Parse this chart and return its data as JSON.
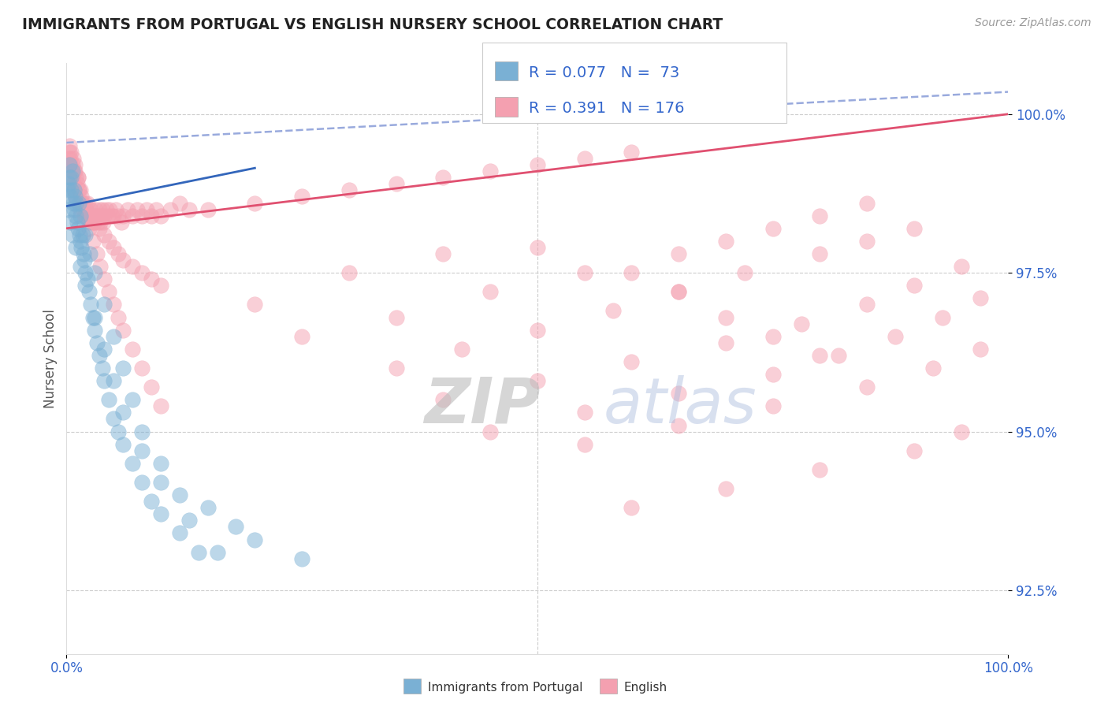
{
  "title": "IMMIGRANTS FROM PORTUGAL VS ENGLISH NURSERY SCHOOL CORRELATION CHART",
  "source_text": "Source: ZipAtlas.com",
  "ylabel": "Nursery School",
  "xlim": [
    0.0,
    100.0
  ],
  "ylim": [
    91.5,
    100.8
  ],
  "yticks": [
    92.5,
    95.0,
    97.5,
    100.0
  ],
  "xticks": [
    0.0,
    100.0
  ],
  "xticklabels": [
    "0.0%",
    "100.0%"
  ],
  "yticklabels": [
    "92.5%",
    "95.0%",
    "97.5%",
    "100.0%"
  ],
  "blue_color": "#7ab0d4",
  "pink_color": "#f4a0b0",
  "blue_line_color": "#3366bb",
  "pink_line_color": "#e05070",
  "dashed_line_color": "#99aadd",
  "legend_R1": "R = 0.077",
  "legend_N1": "N =  73",
  "legend_R2": "R = 0.391",
  "legend_N2": "N = 176",
  "watermark_zip": "ZIP",
  "watermark_atlas": "atlas",
  "legend_label1": "Immigrants from Portugal",
  "legend_label2": "English",
  "background_color": "#ffffff",
  "grid_color": "#cccccc",
  "title_color": "#222222",
  "axis_label_color": "#555555",
  "tick_color": "#3366cc",
  "blue_scatter_x": [
    0.1,
    0.2,
    0.3,
    0.4,
    0.5,
    0.6,
    0.7,
    0.8,
    0.9,
    1.0,
    1.1,
    1.2,
    1.3,
    1.4,
    1.5,
    1.6,
    1.7,
    1.8,
    1.9,
    2.0,
    2.2,
    2.4,
    2.6,
    2.8,
    3.0,
    3.2,
    3.5,
    3.8,
    4.0,
    4.5,
    5.0,
    5.5,
    6.0,
    7.0,
    8.0,
    9.0,
    10.0,
    12.0,
    14.0,
    0.3,
    0.5,
    0.8,
    1.0,
    1.5,
    2.0,
    2.5,
    3.0,
    4.0,
    5.0,
    6.0,
    7.0,
    8.0,
    10.0,
    12.0,
    15.0,
    18.0,
    20.0,
    25.0,
    0.2,
    0.4,
    0.6,
    1.0,
    1.5,
    2.0,
    3.0,
    4.0,
    5.0,
    6.0,
    8.0,
    10.0,
    13.0,
    16.0
  ],
  "blue_scatter_y": [
    98.8,
    98.9,
    99.0,
    98.7,
    98.8,
    99.1,
    98.6,
    98.5,
    98.7,
    98.4,
    98.3,
    98.2,
    98.6,
    98.1,
    98.0,
    97.9,
    98.1,
    97.8,
    97.7,
    97.5,
    97.4,
    97.2,
    97.0,
    96.8,
    96.6,
    96.4,
    96.2,
    96.0,
    95.8,
    95.5,
    95.2,
    95.0,
    94.8,
    94.5,
    94.2,
    93.9,
    93.7,
    93.4,
    93.1,
    99.2,
    99.0,
    98.8,
    98.6,
    98.4,
    98.1,
    97.8,
    97.5,
    97.0,
    96.5,
    96.0,
    95.5,
    95.0,
    94.5,
    94.0,
    93.8,
    93.5,
    93.3,
    93.0,
    98.5,
    98.3,
    98.1,
    97.9,
    97.6,
    97.3,
    96.8,
    96.3,
    95.8,
    95.3,
    94.7,
    94.2,
    93.6,
    93.1
  ],
  "pink_scatter_x": [
    0.1,
    0.2,
    0.3,
    0.4,
    0.5,
    0.6,
    0.7,
    0.8,
    0.9,
    1.0,
    1.1,
    1.2,
    1.3,
    1.4,
    1.5,
    1.6,
    1.7,
    1.8,
    1.9,
    2.0,
    2.1,
    2.2,
    2.3,
    2.4,
    2.5,
    2.6,
    2.7,
    2.8,
    2.9,
    3.0,
    3.1,
    3.2,
    3.3,
    3.4,
    3.5,
    3.6,
    3.7,
    3.8,
    3.9,
    4.0,
    4.2,
    4.4,
    4.6,
    4.8,
    5.0,
    5.2,
    5.5,
    5.8,
    6.0,
    6.5,
    7.0,
    7.5,
    8.0,
    8.5,
    9.0,
    9.5,
    10.0,
    11.0,
    12.0,
    13.0,
    0.3,
    0.5,
    0.7,
    0.9,
    1.2,
    1.5,
    2.0,
    2.5,
    3.0,
    3.5,
    4.0,
    4.5,
    5.0,
    5.5,
    6.0,
    7.0,
    8.0,
    9.0,
    10.0,
    0.4,
    0.6,
    0.8,
    1.0,
    1.3,
    1.6,
    2.0,
    2.4,
    2.8,
    3.2,
    3.6,
    4.0,
    4.5,
    5.0,
    5.5,
    6.0,
    7.0,
    8.0,
    9.0,
    10.0,
    15.0,
    20.0,
    25.0,
    30.0,
    35.0,
    40.0,
    45.0,
    50.0,
    55.0,
    60.0,
    20.0,
    30.0,
    40.0,
    50.0,
    60.0,
    65.0,
    70.0,
    75.0,
    80.0,
    25.0,
    35.0,
    45.0,
    55.0,
    65.0,
    70.0,
    75.0,
    80.0,
    85.0,
    35.0,
    42.0,
    50.0,
    58.0,
    65.0,
    72.0,
    80.0,
    85.0,
    90.0,
    40.0,
    50.0,
    60.0,
    70.0,
    78.0,
    85.0,
    90.0,
    95.0,
    45.0,
    55.0,
    65.0,
    75.0,
    82.0,
    88.0,
    93.0,
    97.0,
    55.0,
    65.0,
    75.0,
    85.0,
    92.0,
    97.0,
    60.0,
    70.0,
    80.0,
    90.0,
    95.0
  ],
  "pink_scatter_y": [
    99.2,
    99.3,
    99.4,
    99.2,
    99.1,
    99.0,
    98.9,
    98.8,
    99.1,
    98.7,
    98.9,
    99.0,
    98.8,
    98.6,
    98.5,
    98.7,
    98.6,
    98.5,
    98.4,
    98.4,
    98.5,
    98.6,
    98.4,
    98.3,
    98.4,
    98.5,
    98.3,
    98.4,
    98.3,
    98.4,
    98.5,
    98.4,
    98.3,
    98.4,
    98.5,
    98.3,
    98.4,
    98.5,
    98.3,
    98.4,
    98.5,
    98.4,
    98.5,
    98.4,
    98.4,
    98.5,
    98.4,
    98.3,
    98.4,
    98.5,
    98.4,
    98.5,
    98.4,
    98.5,
    98.4,
    98.5,
    98.4,
    98.5,
    98.6,
    98.5,
    99.5,
    99.4,
    99.3,
    99.2,
    99.0,
    98.8,
    98.6,
    98.4,
    98.3,
    98.2,
    98.1,
    98.0,
    97.9,
    97.8,
    97.7,
    97.6,
    97.5,
    97.4,
    97.3,
    99.3,
    99.2,
    99.1,
    99.0,
    98.8,
    98.6,
    98.4,
    98.2,
    98.0,
    97.8,
    97.6,
    97.4,
    97.2,
    97.0,
    96.8,
    96.6,
    96.3,
    96.0,
    95.7,
    95.4,
    98.5,
    98.6,
    98.7,
    98.8,
    98.9,
    99.0,
    99.1,
    99.2,
    99.3,
    99.4,
    97.0,
    97.5,
    97.8,
    97.9,
    97.5,
    97.2,
    96.8,
    96.5,
    96.2,
    96.5,
    96.8,
    97.2,
    97.5,
    97.8,
    98.0,
    98.2,
    98.4,
    98.6,
    96.0,
    96.3,
    96.6,
    96.9,
    97.2,
    97.5,
    97.8,
    98.0,
    98.2,
    95.5,
    95.8,
    96.1,
    96.4,
    96.7,
    97.0,
    97.3,
    97.6,
    95.0,
    95.3,
    95.6,
    95.9,
    96.2,
    96.5,
    96.8,
    97.1,
    94.8,
    95.1,
    95.4,
    95.7,
    96.0,
    96.3,
    93.8,
    94.1,
    94.4,
    94.7,
    95.0
  ],
  "blue_line_x": [
    0,
    20
  ],
  "blue_line_y": [
    98.55,
    99.15
  ],
  "pink_line_x": [
    0,
    100
  ],
  "pink_line_y": [
    98.2,
    100.0
  ],
  "dashed_line_x": [
    0,
    100
  ],
  "dashed_line_y": [
    99.55,
    100.35
  ]
}
